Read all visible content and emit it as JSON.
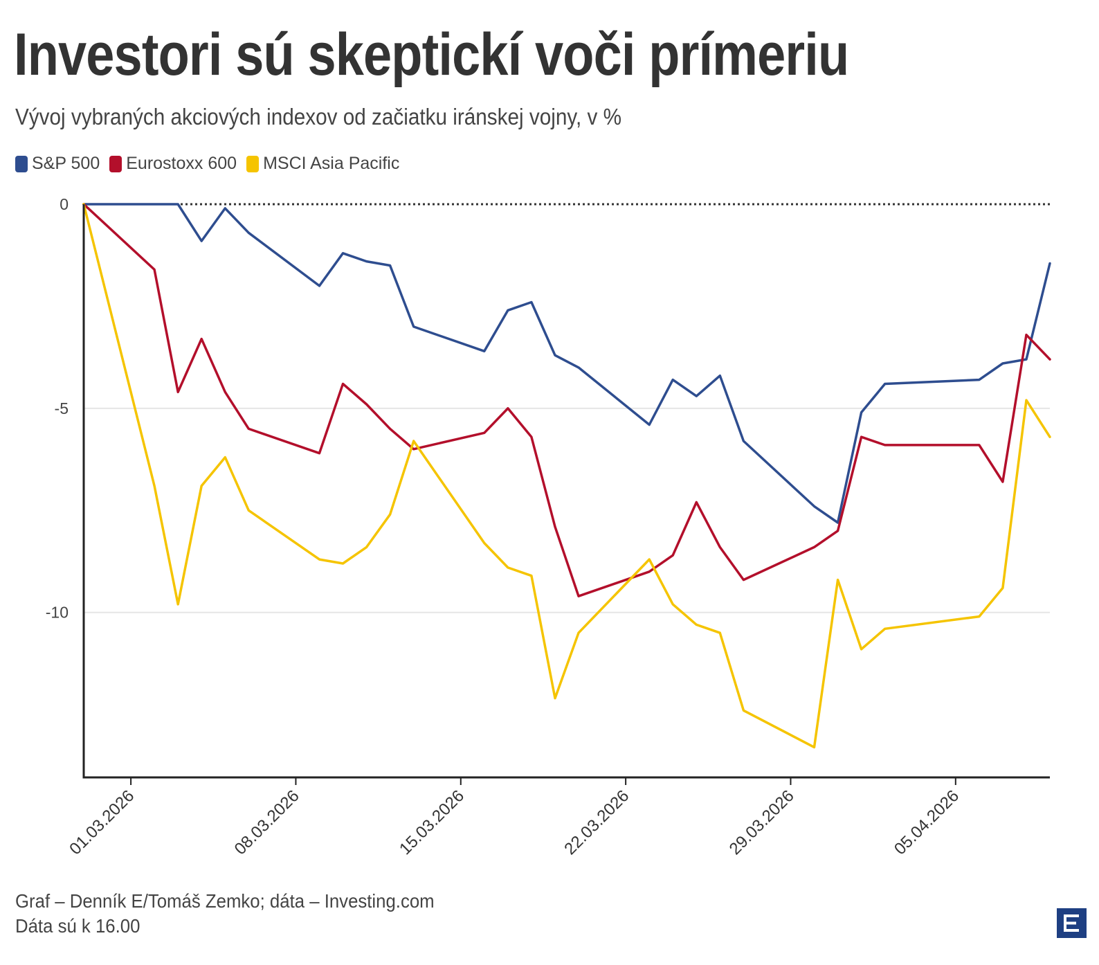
{
  "header": {
    "title": "Investori sú skeptickí voči prímeriu",
    "subtitle": "Vývoj vybraných akciových indexov od začiatku iránskej vojny, v %"
  },
  "legend": [
    {
      "label": "S&P 500",
      "color": "#2e4d8f"
    },
    {
      "label": "Eurostoxx 600",
      "color": "#b30f2b"
    },
    {
      "label": "MSCI Asia Pacific",
      "color": "#f5c400"
    }
  ],
  "footer": {
    "line1": "Graf – Denník E/Tomáš Zemko; dáta – Investing.com",
    "line2": "Dáta sú k 16.00"
  },
  "logo": {
    "icon": "e-logo-icon",
    "color": "#1e3f82"
  },
  "chart_data": {
    "type": "line",
    "title": "Investori sú skeptickí voči prímeriu",
    "ylabel": "%",
    "ylim": [
      -14,
      0
    ],
    "yticks": [
      0,
      -5,
      -10
    ],
    "ytick_labels": [
      "0",
      "-5",
      "-10"
    ],
    "xlim": [
      -1,
      40
    ],
    "xticks": [
      1,
      8,
      15,
      22,
      29,
      36
    ],
    "xtick_labels": [
      "01.03.2026",
      "08.03.2026",
      "15.03.2026",
      "22.03.2026",
      "29.03.2026",
      "05.04.2026"
    ],
    "reference_line": 0,
    "series": [
      {
        "name": "S&P 500",
        "color": "#2e4d8f",
        "x": [
          -1,
          3,
          4,
          5,
          6,
          9,
          10,
          11,
          12,
          13,
          16,
          17,
          18,
          19,
          20,
          23,
          24,
          25,
          26,
          27,
          30,
          31,
          32,
          33,
          37,
          38,
          39,
          40
        ],
        "y": [
          0,
          0,
          -0.9,
          -0.1,
          -0.7,
          -2.0,
          -1.2,
          -1.4,
          -1.5,
          -3.0,
          -3.6,
          -2.6,
          -2.4,
          -3.7,
          -4.0,
          -5.4,
          -4.3,
          -4.7,
          -4.2,
          -5.8,
          -7.4,
          -7.8,
          -5.1,
          -4.4,
          -4.3,
          -3.9,
          -3.8,
          -1.45
        ]
      },
      {
        "name": "Eurostoxx 600",
        "color": "#b30f2b",
        "x": [
          -1,
          2,
          3,
          4,
          5,
          6,
          9,
          10,
          11,
          12,
          13,
          16,
          17,
          18,
          19,
          20,
          23,
          24,
          25,
          26,
          27,
          30,
          31,
          32,
          33,
          37,
          38,
          39,
          40
        ],
        "y": [
          0,
          -1.6,
          -4.6,
          -3.3,
          -4.6,
          -5.5,
          -6.1,
          -4.4,
          -4.9,
          -5.5,
          -6.0,
          -5.6,
          -5.0,
          -5.7,
          -7.9,
          -9.6,
          -9.0,
          -8.6,
          -7.3,
          -8.4,
          -9.2,
          -8.4,
          -8.0,
          -5.7,
          -5.9,
          -5.9,
          -6.8,
          -3.2,
          -3.8
        ]
      },
      {
        "name": "MSCI Asia Pacific",
        "color": "#f5c400",
        "x": [
          -1,
          2,
          3,
          4,
          5,
          6,
          9,
          10,
          11,
          12,
          13,
          16,
          17,
          18,
          19,
          20,
          23,
          24,
          25,
          26,
          27,
          30,
          31,
          32,
          33,
          37,
          38,
          39,
          40
        ],
        "y": [
          0,
          -6.9,
          -9.8,
          -6.9,
          -6.2,
          -7.5,
          -8.7,
          -8.8,
          -8.4,
          -7.6,
          -5.8,
          -8.3,
          -8.9,
          -9.1,
          -12.1,
          -10.5,
          -8.7,
          -9.8,
          -10.3,
          -10.5,
          -12.4,
          -13.3,
          -9.2,
          -10.9,
          -10.4,
          -10.1,
          -9.4,
          -4.8,
          -5.7
        ]
      }
    ]
  }
}
